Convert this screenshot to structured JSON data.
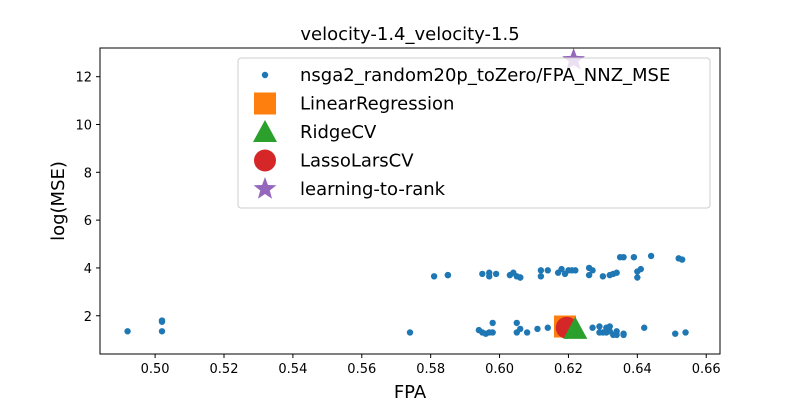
{
  "chart_data": {
    "type": "scatter",
    "title": "velocity-1.4_velocity-1.5",
    "xlabel": "FPA",
    "ylabel": "log(MSE)",
    "xlim": [
      0.484,
      0.664
    ],
    "ylim": [
      0.4,
      13.2
    ],
    "xticks": [
      0.5,
      0.52,
      0.54,
      0.56,
      0.58,
      0.6,
      0.62,
      0.64,
      0.66
    ],
    "xtick_labels": [
      "0.50",
      "0.52",
      "0.54",
      "0.56",
      "0.58",
      "0.60",
      "0.62",
      "0.64",
      "0.66"
    ],
    "yticks": [
      2,
      4,
      6,
      8,
      10,
      12
    ],
    "ytick_labels": [
      "2",
      "4",
      "6",
      "8",
      "10",
      "12"
    ],
    "grid": false,
    "legend_position": "top-right",
    "colors": {
      "nsga2": "#1f77b4",
      "linear": "#ff7f0e",
      "ridge": "#2ca02c",
      "lasso": "#d62728",
      "ltr": "#9467bd"
    },
    "series": [
      {
        "name": "nsga2_random20p_toZero/FPA_NNZ_MSE",
        "marker": "dot",
        "points": [
          [
            0.492,
            1.35
          ],
          [
            0.502,
            1.8
          ],
          [
            0.502,
            1.75
          ],
          [
            0.502,
            1.35
          ],
          [
            0.574,
            1.3
          ],
          [
            0.581,
            3.65
          ],
          [
            0.585,
            3.7
          ],
          [
            0.585,
            3.7
          ],
          [
            0.594,
            1.4
          ],
          [
            0.595,
            3.75
          ],
          [
            0.595,
            1.3
          ],
          [
            0.596,
            1.25
          ],
          [
            0.597,
            3.65
          ],
          [
            0.597,
            3.8
          ],
          [
            0.597,
            1.3
          ],
          [
            0.598,
            1.3
          ],
          [
            0.598,
            1.7
          ],
          [
            0.599,
            3.75
          ],
          [
            0.603,
            3.7
          ],
          [
            0.604,
            3.8
          ],
          [
            0.605,
            3.65
          ],
          [
            0.605,
            1.7
          ],
          [
            0.605,
            1.3
          ],
          [
            0.606,
            3.6
          ],
          [
            0.606,
            3.6
          ],
          [
            0.606,
            1.45
          ],
          [
            0.608,
            1.3
          ],
          [
            0.611,
            1.45
          ],
          [
            0.612,
            3.9
          ],
          [
            0.612,
            3.65
          ],
          [
            0.614,
            3.9
          ],
          [
            0.614,
            1.5
          ],
          [
            0.617,
            3.8
          ],
          [
            0.618,
            3.95
          ],
          [
            0.618,
            1.3
          ],
          [
            0.619,
            3.75
          ],
          [
            0.62,
            3.9
          ],
          [
            0.621,
            3.9
          ],
          [
            0.622,
            3.9
          ],
          [
            0.622,
            1.35
          ],
          [
            0.626,
            4.0
          ],
          [
            0.626,
            3.7
          ],
          [
            0.627,
            3.9
          ],
          [
            0.627,
            1.5
          ],
          [
            0.629,
            1.55
          ],
          [
            0.629,
            1.3
          ],
          [
            0.63,
            3.65
          ],
          [
            0.63,
            1.3
          ],
          [
            0.631,
            1.5
          ],
          [
            0.631,
            1.3
          ],
          [
            0.632,
            1.55
          ],
          [
            0.632,
            1.35
          ],
          [
            0.632,
            3.7
          ],
          [
            0.633,
            1.2
          ],
          [
            0.633,
            3.75
          ],
          [
            0.634,
            1.2
          ],
          [
            0.634,
            3.8
          ],
          [
            0.634,
            1.35
          ],
          [
            0.635,
            4.45
          ],
          [
            0.636,
            4.45
          ],
          [
            0.636,
            1.25
          ],
          [
            0.636,
            1.2
          ],
          [
            0.639,
            4.45
          ],
          [
            0.64,
            3.85
          ],
          [
            0.64,
            3.6
          ],
          [
            0.641,
            3.95
          ],
          [
            0.642,
            1.5
          ],
          [
            0.644,
            4.5
          ],
          [
            0.651,
            1.25
          ],
          [
            0.652,
            4.4
          ],
          [
            0.653,
            4.35
          ],
          [
            0.654,
            1.3
          ]
        ]
      },
      {
        "name": "LinearRegression",
        "marker": "square",
        "points": [
          [
            0.619,
            1.55
          ]
        ]
      },
      {
        "name": "RidgeCV",
        "marker": "triangle",
        "points": [
          [
            0.622,
            1.45
          ]
        ]
      },
      {
        "name": "LassoLarsCV",
        "marker": "circle",
        "points": [
          [
            0.6195,
            1.5
          ]
        ]
      },
      {
        "name": "learning-to-rank",
        "marker": "star",
        "points": [
          [
            0.6215,
            12.7
          ]
        ]
      }
    ]
  }
}
